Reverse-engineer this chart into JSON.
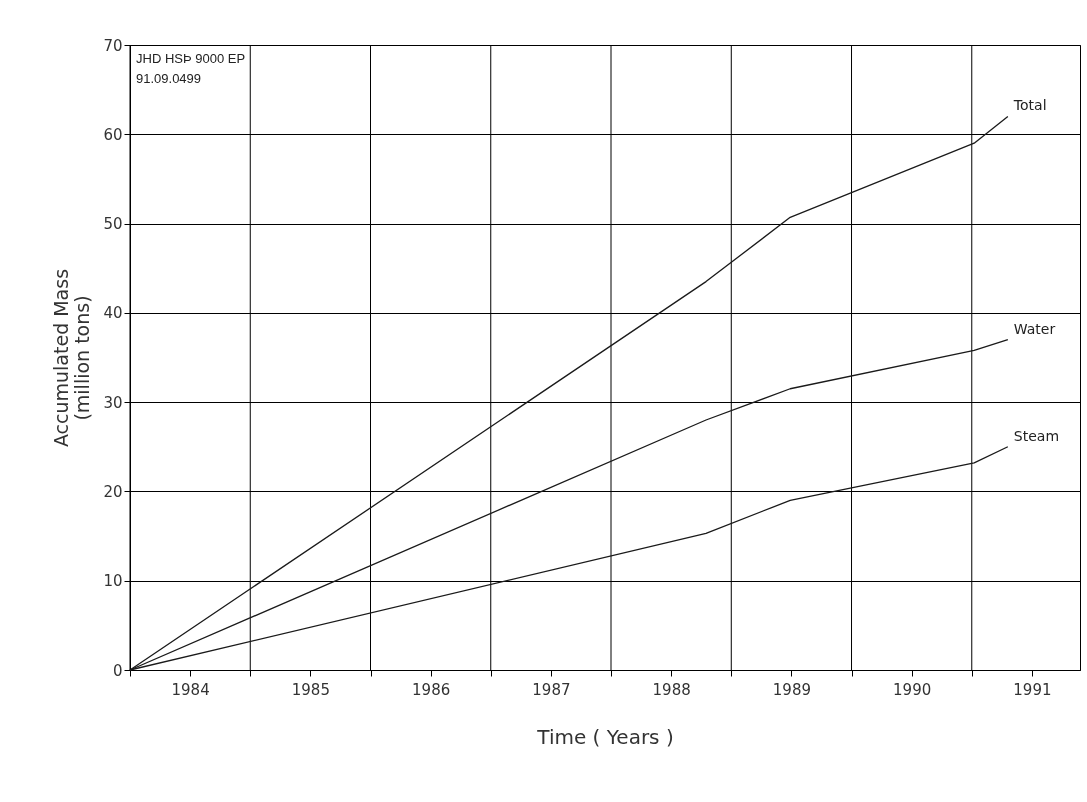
{
  "chart_data": {
    "type": "line",
    "xlabel": "Time ( Years )",
    "ylabel": "Accumulated Mass\n(million tons)",
    "annotations": [
      "JHD HSÞ 9000 EP",
      "91.09.0499"
    ],
    "x": [
      1984,
      1988.79,
      1989.49,
      1991.02,
      1991.3
    ],
    "series": [
      {
        "name": "Total",
        "color": "#1a1a1a",
        "values": [
          0,
          43.5,
          50.7,
          59,
          62
        ]
      },
      {
        "name": "Water",
        "color": "#1a1a1a",
        "values": [
          0,
          28,
          31.5,
          35.8,
          37
        ]
      },
      {
        "name": "Steam",
        "color": "#1a1a1a",
        "values": [
          0,
          15.3,
          19,
          23.2,
          25
        ]
      }
    ],
    "xlim": [
      1984,
      1991.9
    ],
    "xticks": [
      {
        "value": 1984,
        "label": null
      },
      {
        "value": 1984.5,
        "label": "1984"
      },
      {
        "value": 1985,
        "label": null
      },
      {
        "value": 1985.5,
        "label": "1985"
      },
      {
        "value": 1986,
        "label": null
      },
      {
        "value": 1986.5,
        "label": "1986"
      },
      {
        "value": 1987,
        "label": null
      },
      {
        "value": 1987.5,
        "label": "1987"
      },
      {
        "value": 1988,
        "label": null
      },
      {
        "value": 1988.5,
        "label": "1988"
      },
      {
        "value": 1989,
        "label": null
      },
      {
        "value": 1989.5,
        "label": "1989"
      },
      {
        "value": 1990,
        "label": null
      },
      {
        "value": 1990.5,
        "label": "1990"
      },
      {
        "value": 1991,
        "label": null
      },
      {
        "value": 1991.5,
        "label": "1991"
      }
    ],
    "ylim": [
      0,
      70
    ],
    "yticks": [
      0,
      10,
      20,
      30,
      40,
      50,
      60,
      70
    ],
    "grid": true,
    "marker": "none",
    "line_style": "solid",
    "legend": false
  }
}
